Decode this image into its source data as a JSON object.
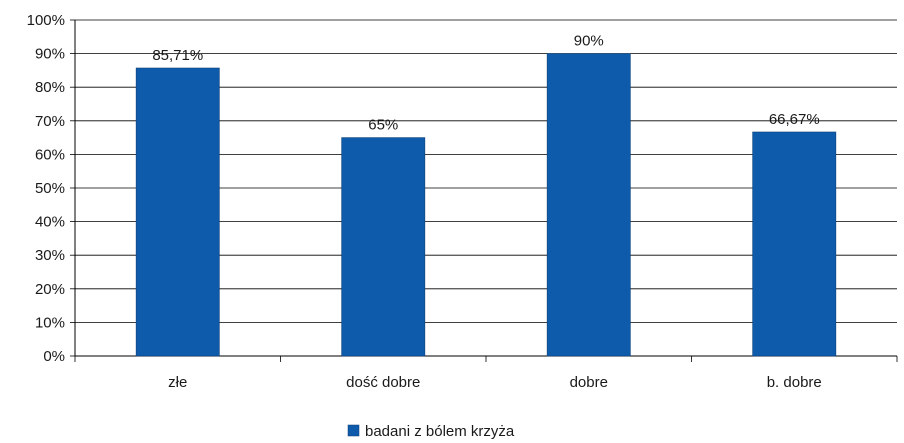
{
  "chart_data": {
    "type": "bar",
    "categories": [
      "złe",
      "dość dobre",
      "dobre",
      "b. dobre"
    ],
    "series": [
      {
        "name": "badani z bólem krzyża",
        "values": [
          85.71,
          65,
          90,
          66.67
        ],
        "data_labels": [
          "85,71%",
          "65%",
          "90%",
          "66,67%"
        ]
      }
    ],
    "y_ticks": [
      "0%",
      "10%",
      "20%",
      "30%",
      "40%",
      "50%",
      "60%",
      "70%",
      "80%",
      "90%",
      "100%"
    ],
    "ylim": [
      0,
      100
    ],
    "grid": true,
    "legend_position": "bottom",
    "bar_color": "#0e5aab"
  }
}
